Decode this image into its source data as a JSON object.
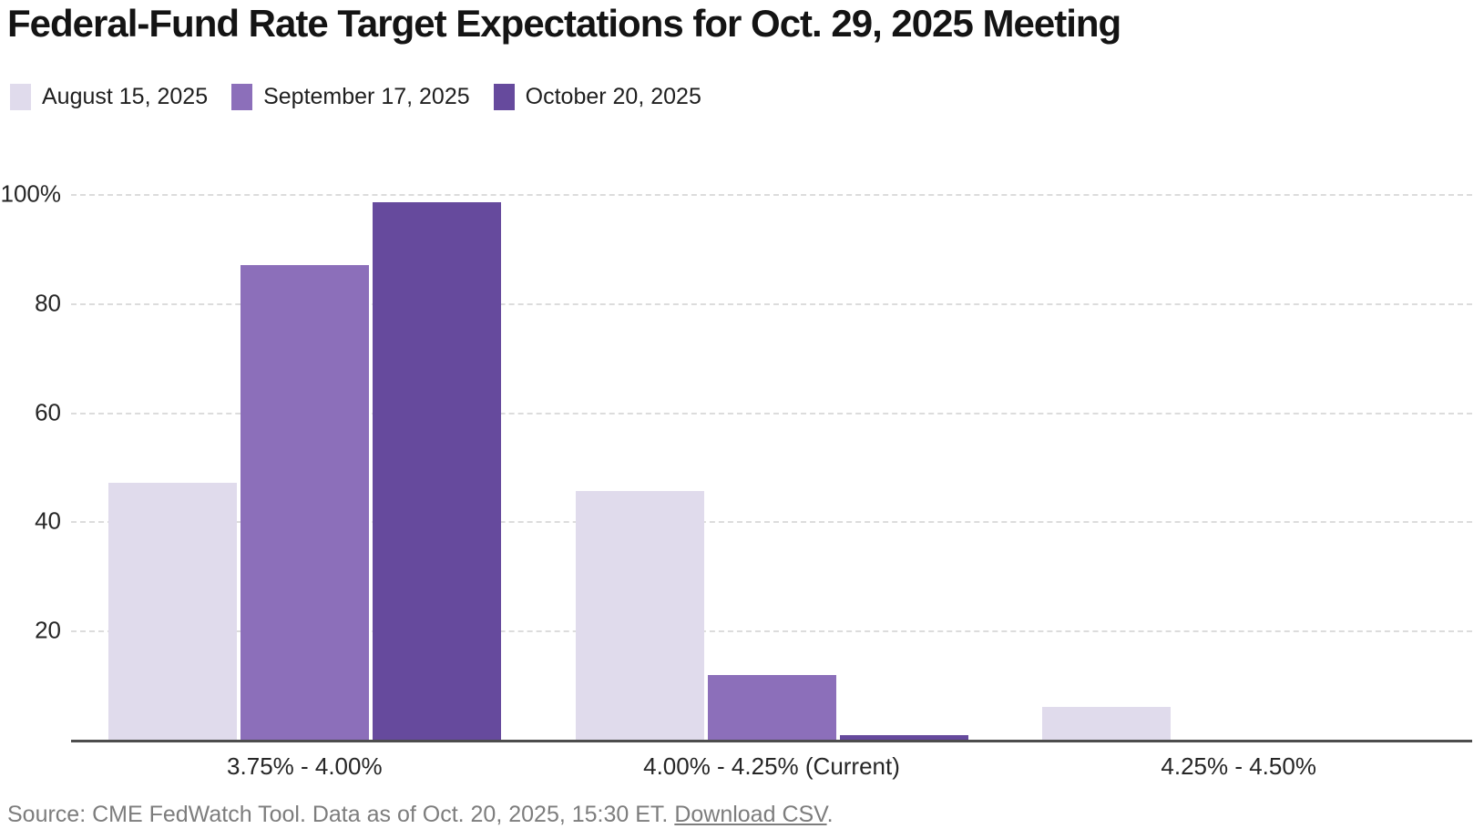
{
  "title": "Federal-Fund Rate Target Expectations for Oct. 29, 2025 Meeting",
  "legend": [
    {
      "label": "August 15, 2025",
      "color": "#e0dbec"
    },
    {
      "label": "September 17, 2025",
      "color": "#8c6fba"
    },
    {
      "label": "October 20, 2025",
      "color": "#664a9d"
    }
  ],
  "chart_data": {
    "type": "bar",
    "title": "Federal-Fund Rate Target Expectations for Oct. 29, 2025 Meeting",
    "categories": [
      "3.75% - 4.00%",
      "4.00% - 4.25% (Current)",
      "4.25% - 4.50%"
    ],
    "series": [
      {
        "name": "August 15, 2025",
        "color": "#e0dbec",
        "values": [
          47,
          45.5,
          6
        ]
      },
      {
        "name": "September 17, 2025",
        "color": "#8c6fba",
        "values": [
          87,
          11.8,
          0
        ]
      },
      {
        "name": "October 20, 2025",
        "color": "#664a9d",
        "values": [
          98.5,
          0.8,
          0
        ]
      }
    ],
    "xlabel": "",
    "ylabel": "",
    "ylim": [
      0,
      100
    ],
    "y_ticks": [
      {
        "value": 100,
        "label": "100%"
      },
      {
        "value": 80,
        "label": "80"
      },
      {
        "value": 60,
        "label": "60"
      },
      {
        "value": 40,
        "label": "40"
      },
      {
        "value": 20,
        "label": "20"
      }
    ],
    "grid": "horizontal-dashed",
    "legend_position": "top-left",
    "colors": {
      "gridline": "#dcdcdc",
      "baseline": "#4d4d4d",
      "tick_text": "#262626",
      "source_text": "#7d7d7d"
    }
  },
  "source": {
    "prefix": "Source: CME FedWatch Tool. Data as of Oct. 20, 2025, 15:30 ET. ",
    "link_label": "Download CSV",
    "suffix": "."
  }
}
